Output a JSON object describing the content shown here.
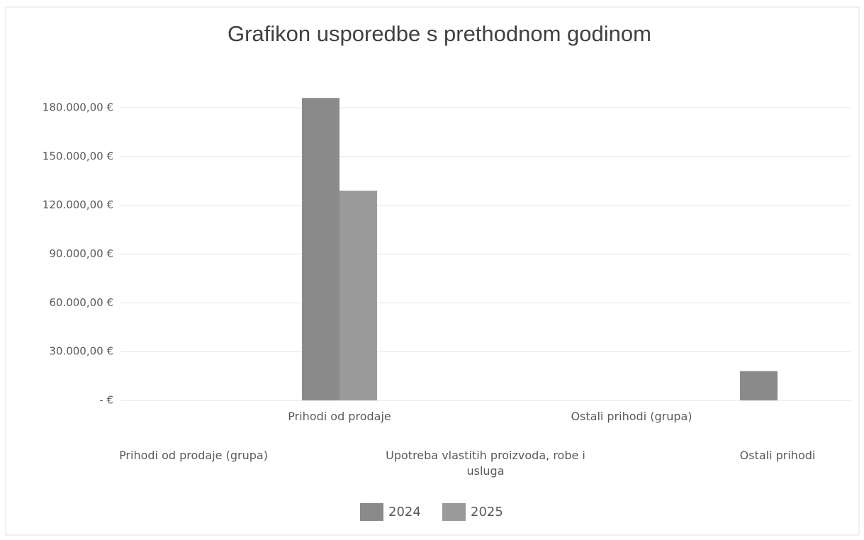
{
  "chart_data": {
    "type": "bar",
    "title": "Grafikon usporedbe s prethodnom godinom",
    "categories": [
      "Prihodi od prodaje (grupa)",
      "Prihodi od prodaje",
      "Upotreba vlastitih proizvoda, robe i usluga",
      "Ostali prihodi (grupa)",
      "Ostali prihodi"
    ],
    "series": [
      {
        "name": "2024",
        "color": "#8a8a8a",
        "values": [
          null,
          186000,
          null,
          null,
          18000
        ]
      },
      {
        "name": "2025",
        "color": "#9a9a9a",
        "values": [
          null,
          129000,
          null,
          null,
          null
        ]
      }
    ],
    "ylim": [
      0,
      180000
    ],
    "yticks": [
      {
        "value": 0,
        "label": "-  €"
      },
      {
        "value": 30000,
        "label": "30.000,00 €"
      },
      {
        "value": 60000,
        "label": "60.000,00 €"
      },
      {
        "value": 90000,
        "label": "90.000,00 €"
      },
      {
        "value": 120000,
        "label": "120.000,00 €"
      },
      {
        "value": 150000,
        "label": "150.000,00 €"
      },
      {
        "value": 180000,
        "label": "180.000,00 €"
      }
    ],
    "grid": true,
    "legend": "bottom"
  }
}
